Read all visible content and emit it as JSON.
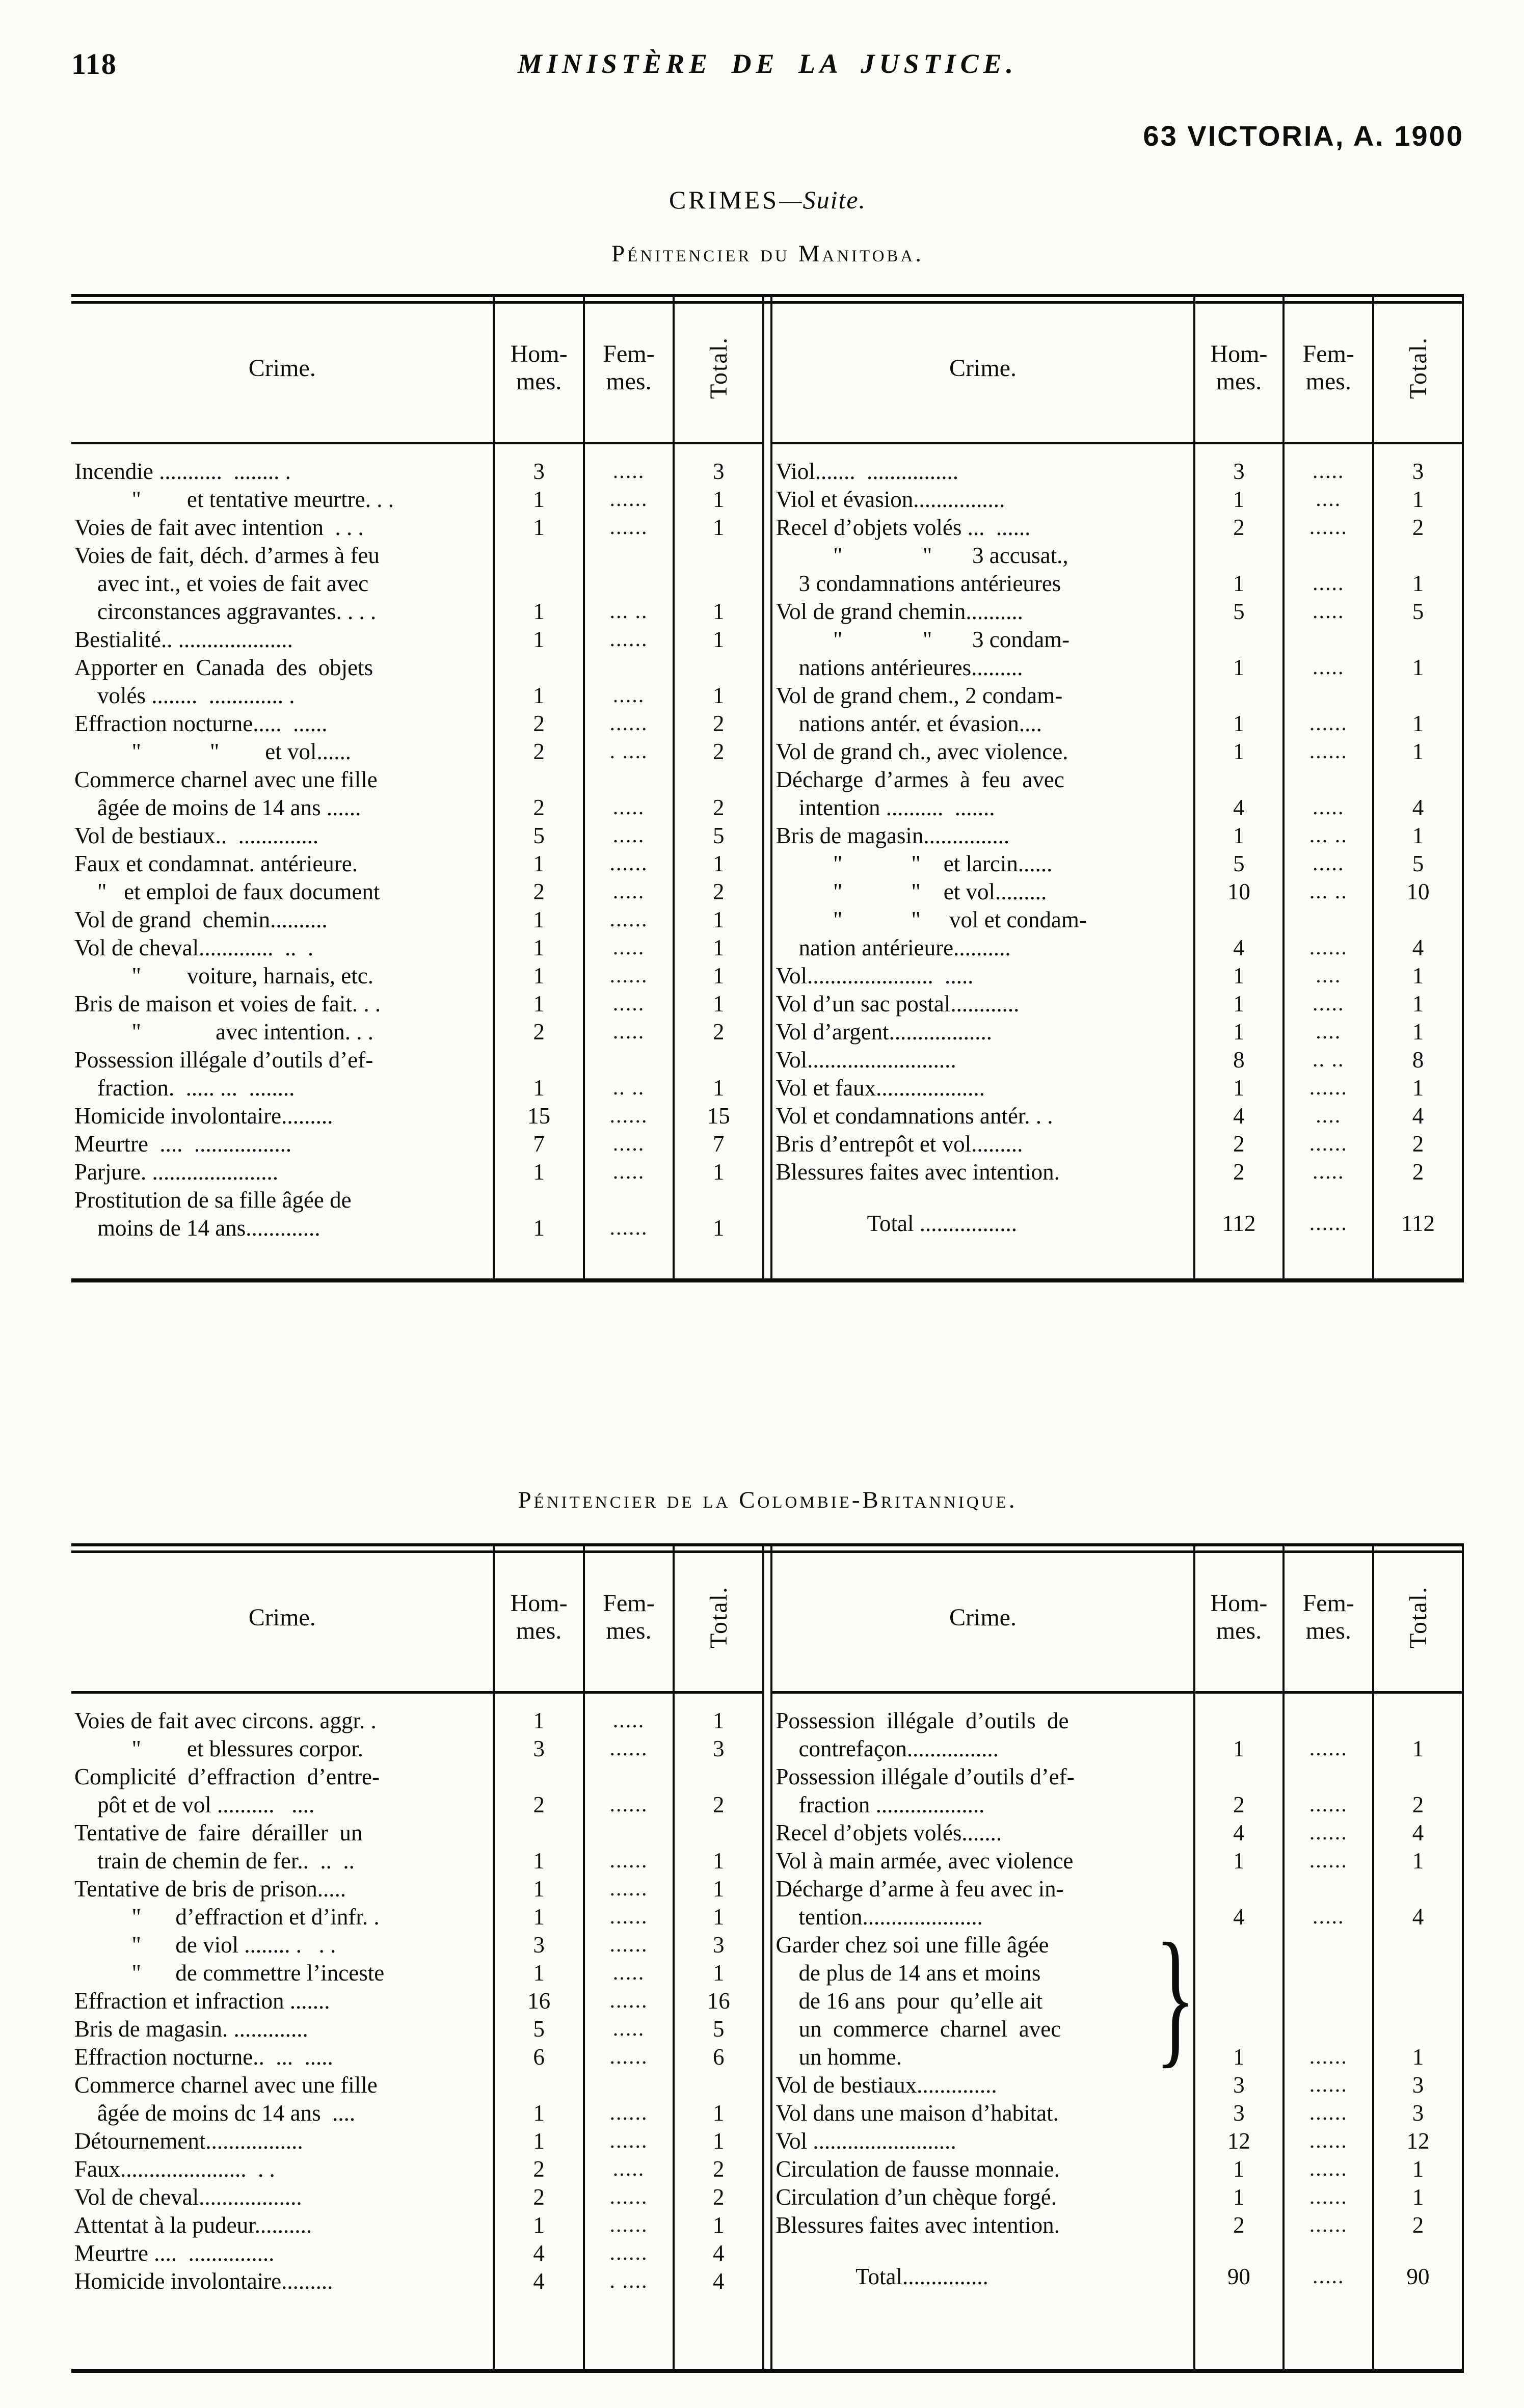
{
  "page": {
    "page_number": "118",
    "running_title": "MINISTÈRE DE LA JUSTICE.",
    "edition": "63 VICTORIA, A. 1900",
    "section_title": "CRIMES",
    "section_suffix": "—Suite.",
    "col_headers": {
      "crime": "Crime.",
      "hommes": [
        "Hom-",
        "mes."
      ],
      "femmes": [
        "Fem-",
        "mes."
      ],
      "total": "Total."
    }
  },
  "tables": [
    {
      "title": "Pénitencier du Manitoba.",
      "halves": [
        {
          "rows": [
            {
              "lines": [
                "Incendie ...........  ........ ."
              ],
              "h": "3",
              "f": ".....",
              "t": "3"
            },
            {
              "lines": [
                "          \"        et tentative meurtre. . ."
              ],
              "h": "1",
              "f": "......",
              "t": "1"
            },
            {
              "lines": [
                "Voies de fait avec intention  . . ."
              ],
              "h": "1",
              "f": "......",
              "t": "1"
            },
            {
              "lines": [
                "Voies de fait, déch. d’armes à feu",
                "    avec int., et voies de fait avec",
                "    circonstances aggravantes. . . ."
              ],
              "h": "1",
              "f": "...  ..",
              "t": "1"
            },
            {
              "lines": [
                "Bestialité.. ...................."
              ],
              "h": "1",
              "f": "......",
              "t": "1"
            },
            {
              "lines": [
                "Apporter en  Canada  des  objets",
                "    volés ........  ............. ."
              ],
              "h": "1",
              "f": ".....",
              "t": "1"
            },
            {
              "lines": [
                "Effraction nocturne.....  ......"
              ],
              "h": "2",
              "f": "......",
              "t": "2"
            },
            {
              "lines": [
                "          \"            \"        et vol......"
              ],
              "h": "2",
              "f": ".  ....",
              "t": "2"
            },
            {
              "lines": [
                "Commerce charnel avec une fille",
                "    âgée de moins de 14 ans ......"
              ],
              "h": "2",
              "f": ".....",
              "t": "2"
            },
            {
              "lines": [
                "Vol de bestiaux..  .............."
              ],
              "h": "5",
              "f": ".....",
              "t": "5"
            },
            {
              "lines": [
                "Faux et condamnat. antérieure."
              ],
              "h": "1",
              "f": "......",
              "t": "1"
            },
            {
              "lines": [
                "    \"   et emploi de faux document"
              ],
              "h": "2",
              "f": ".....",
              "t": "2"
            },
            {
              "lines": [
                "Vol de grand  chemin.........."
              ],
              "h": "1",
              "f": "......",
              "t": "1"
            },
            {
              "lines": [
                "Vol de cheval.............  ..  ."
              ],
              "h": "1",
              "f": ".....",
              "t": "1"
            },
            {
              "lines": [
                "          \"        voiture, harnais, etc."
              ],
              "h": "1",
              "f": "......",
              "t": "1"
            },
            {
              "lines": [
                "Bris de maison et voies de fait. . ."
              ],
              "h": "1",
              "f": ".....",
              "t": "1"
            },
            {
              "lines": [
                "          \"             avec intention. . ."
              ],
              "h": "2",
              "f": ".....",
              "t": "2"
            },
            {
              "lines": [
                "Possession illégale d’outils d’ef-",
                "    fraction.  ..... ...  ........"
              ],
              "h": "1",
              "f": "..  ..",
              "t": "1"
            },
            {
              "lines": [
                "Homicide involontaire........."
              ],
              "h": "15",
              "f": "......",
              "t": "15"
            },
            {
              "lines": [
                "Meurtre  ....  ................."
              ],
              "h": "7",
              "f": ".....",
              "t": "7"
            },
            {
              "lines": [
                "Parjure. ......................"
              ],
              "h": "1",
              "f": ".....",
              "t": "1"
            },
            {
              "lines": [
                "Prostitution de sa fille âgée de",
                "    moins de 14 ans............."
              ],
              "h": "1",
              "f": "......",
              "t": "1"
            }
          ]
        },
        {
          "rows": [
            {
              "lines": [
                "Viol.......  ................"
              ],
              "h": "3",
              "f": ".....",
              "t": "3"
            },
            {
              "lines": [
                "Viol et évasion................"
              ],
              "h": "1",
              "f": "....",
              "t": "1"
            },
            {
              "lines": [
                "Recel d’objets volés ...  ......"
              ],
              "h": "2",
              "f": "......",
              "t": "2"
            },
            {
              "lines": [
                "          \"              \"       3 accusat.,",
                "    3 condamnations antérieures"
              ],
              "h": "1",
              "f": ".....",
              "t": "1"
            },
            {
              "lines": [
                "Vol de grand chemin.........."
              ],
              "h": "5",
              "f": ".....",
              "t": "5"
            },
            {
              "lines": [
                "          \"              \"       3 condam-",
                "    nations antérieures........."
              ],
              "h": "1",
              "f": ".....",
              "t": "1"
            },
            {
              "lines": [
                "Vol de grand chem., 2 condam-",
                "    nations antér. et évasion...."
              ],
              "h": "1",
              "f": "......",
              "t": "1"
            },
            {
              "lines": [
                "Vol de grand ch., avec violence."
              ],
              "h": "1",
              "f": "......",
              "t": "1"
            },
            {
              "lines": [
                "Décharge  d’armes  à  feu  avec",
                "    intention ..........  ......."
              ],
              "h": "4",
              "f": ".....",
              "t": "4"
            },
            {
              "lines": [
                "Bris de magasin..............."
              ],
              "h": "1",
              "f": "...  ..",
              "t": "1"
            },
            {
              "lines": [
                "          \"            \"    et larcin......"
              ],
              "h": "5",
              "f": ".....",
              "t": "5"
            },
            {
              "lines": [
                "          \"            \"    et vol........."
              ],
              "h": "10",
              "f": "...  ..",
              "t": "10"
            },
            {
              "lines": [
                "          \"            \"     vol et condam-",
                "    nation antérieure.........."
              ],
              "h": "4",
              "f": "......",
              "t": "4"
            },
            {
              "lines": [
                "Vol......................  ....."
              ],
              "h": "1",
              "f": "....",
              "t": "1"
            },
            {
              "lines": [
                "Vol d’un sac postal............"
              ],
              "h": "1",
              "f": ".....",
              "t": "1"
            },
            {
              "lines": [
                "Vol d’argent.................."
              ],
              "h": "1",
              "f": "....",
              "t": "1"
            },
            {
              "lines": [
                "Vol.........................."
              ],
              "h": "8",
              "f": "..  ..",
              "t": "8"
            },
            {
              "lines": [
                "Vol et faux..................."
              ],
              "h": "1",
              "f": "......",
              "t": "1"
            },
            {
              "lines": [
                "Vol et condamnations antér. . ."
              ],
              "h": "4",
              "f": "....",
              "t": "4"
            },
            {
              "lines": [
                "Bris d’entrepôt et vol........."
              ],
              "h": "2",
              "f": "......",
              "t": "2"
            },
            {
              "lines": [
                "Blessures faites avec intention."
              ],
              "h": "2",
              "f": ".....",
              "t": "2"
            },
            {
              "lines": [
                "                Total ................."
              ],
              "h": "112",
              "f": "......",
              "t": "112",
              "total": true
            }
          ]
        }
      ]
    },
    {
      "title": "Pénitencier de la Colombie-Britannique.",
      "halves": [
        {
          "rows": [
            {
              "lines": [
                "Voies de fait avec circons. aggr. ."
              ],
              "h": "1",
              "f": ".....",
              "t": "1"
            },
            {
              "lines": [
                "          \"        et blessures corpor."
              ],
              "h": "3",
              "f": "......",
              "t": "3"
            },
            {
              "lines": [
                "Complicité  d’effraction  d’entre-",
                "    pôt et de vol ..........   ...."
              ],
              "h": "2",
              "f": "......",
              "t": "2"
            },
            {
              "lines": [
                "Tentative de  faire  dérailler  un",
                "    train de chemin de fer..  ..  .."
              ],
              "h": "1",
              "f": "......",
              "t": "1"
            },
            {
              "lines": [
                "Tentative de bris de prison....."
              ],
              "h": "1",
              "f": "......",
              "t": "1"
            },
            {
              "lines": [
                "          \"      d’effraction et d’infr. ."
              ],
              "h": "1",
              "f": "......",
              "t": "1"
            },
            {
              "lines": [
                "          \"      de viol ........ .   . ."
              ],
              "h": "3",
              "f": "......",
              "t": "3"
            },
            {
              "lines": [
                "          \"      de commettre l’inceste"
              ],
              "h": "1",
              "f": ".....",
              "t": "1"
            },
            {
              "lines": [
                "Effraction et infraction ......."
              ],
              "h": "16",
              "f": "......",
              "t": "16"
            },
            {
              "lines": [
                "Bris de magasin. ............."
              ],
              "h": "5",
              "f": ".....",
              "t": "5"
            },
            {
              "lines": [
                "Effraction nocturne..  ...  ....."
              ],
              "h": "6",
              "f": "......",
              "t": "6"
            },
            {
              "lines": [
                "Commerce charnel avec une fille",
                "    âgée de moins dc 14 ans  ...."
              ],
              "h": "1",
              "f": "......",
              "t": "1"
            },
            {
              "lines": [
                "Détournement................."
              ],
              "h": "1",
              "f": "......",
              "t": "1"
            },
            {
              "lines": [
                "Faux......................  . ."
              ],
              "h": "2",
              "f": ".....",
              "t": "2"
            },
            {
              "lines": [
                "Vol de cheval.................."
              ],
              "h": "2",
              "f": "......",
              "t": "2"
            },
            {
              "lines": [
                "Attentat à la pudeur.........."
              ],
              "h": "1",
              "f": "......",
              "t": "1"
            },
            {
              "lines": [
                "Meurtre ....  ..............."
              ],
              "h": "4",
              "f": "......",
              "t": "4"
            },
            {
              "lines": [
                "Homicide involontaire........."
              ],
              "h": "4",
              "f": ".  ....",
              "t": "4"
            }
          ]
        },
        {
          "rows": [
            {
              "lines": [
                "Possession  illégale  d’outils  de",
                "    contrefaçon................"
              ],
              "h": "1",
              "f": "......",
              "t": "1"
            },
            {
              "lines": [
                "Possession illégale d’outils d’ef-",
                "    fraction ..................."
              ],
              "h": "2",
              "f": "......",
              "t": "2"
            },
            {
              "lines": [
                "Recel d’objets volés......."
              ],
              "h": "4",
              "f": "......",
              "t": "4"
            },
            {
              "lines": [
                "Vol à main armée, avec violence"
              ],
              "h": "1",
              "f": "......",
              "t": "1"
            },
            {
              "lines": [
                "Décharge d’arme à feu avec in-",
                "    tention....................."
              ],
              "h": "4",
              "f": ".....",
              "t": "4"
            },
            {
              "lines": [
                "Garder chez soi une fille âgée",
                "    de plus de 14 ans et moins",
                "    de 16 ans  pour  qu’elle ait",
                "    un  commerce  charnel  avec",
                "    un homme."
              ],
              "h": "1",
              "f": "......",
              "t": "1",
              "brace": "}",
              "vmid": true
            },
            {
              "lines": [
                "Vol de bestiaux.............."
              ],
              "h": "3",
              "f": "......",
              "t": "3"
            },
            {
              "lines": [
                "Vol dans une maison d’habitat."
              ],
              "h": "3",
              "f": "......",
              "t": "3"
            },
            {
              "lines": [
                "Vol ........................."
              ],
              "h": "12",
              "f": "......",
              "t": "12"
            },
            {
              "lines": [
                "Circulation de fausse monnaie."
              ],
              "h": "1",
              "f": "......",
              "t": "1"
            },
            {
              "lines": [
                "Circulation d’un chèque forgé."
              ],
              "h": "1",
              "f": "......",
              "t": "1"
            },
            {
              "lines": [
                "Blessures faites avec intention."
              ],
              "h": "2",
              "f": "......",
              "t": "2"
            },
            {
              "lines": [
                "              Total..............."
              ],
              "h": "90",
              "f": ".....",
              "t": "90",
              "total": true
            }
          ]
        }
      ]
    }
  ]
}
